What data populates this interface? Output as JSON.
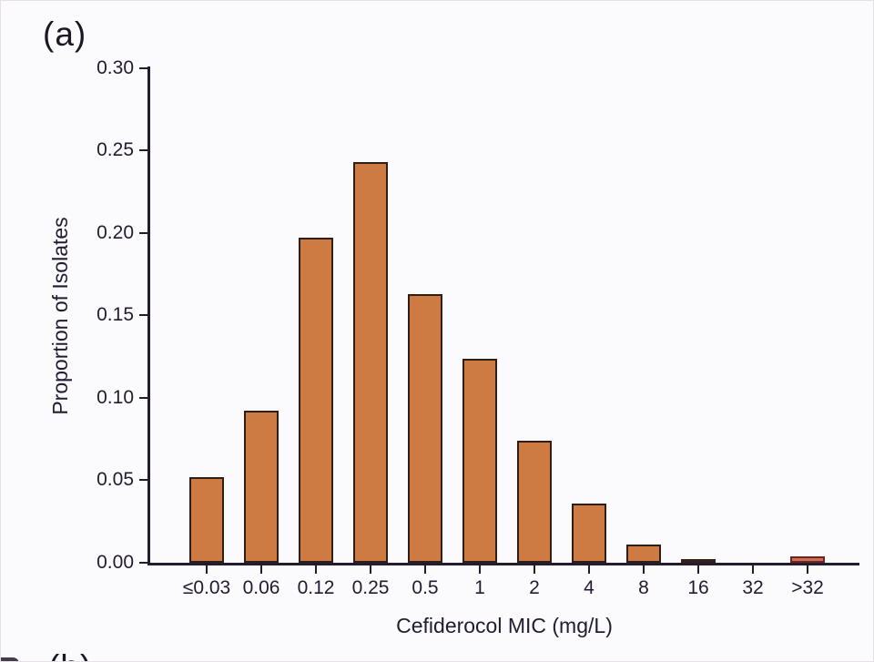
{
  "panel_label_a": "(a)",
  "panel_label_b": "(b)",
  "chart_data": {
    "type": "bar",
    "title": "",
    "xlabel": "Cefiderocol MIC (mg/L)",
    "ylabel": "Proportion of Isolates",
    "categories": [
      "≤0.03",
      "0.06",
      "0.12",
      "0.25",
      "0.5",
      "1",
      "2",
      "4",
      "8",
      "16",
      "32",
      ">32"
    ],
    "values": [
      0.052,
      0.092,
      0.197,
      0.243,
      0.163,
      0.124,
      0.074,
      0.036,
      0.011,
      0.002,
      0,
      0.004
    ],
    "yticks": [
      0.0,
      0.05,
      0.1,
      0.15,
      0.2,
      0.25,
      0.3
    ],
    "ylim": [
      0,
      0.3
    ],
    "grid": false,
    "legend": null,
    "bar_fill": "#cd7b42",
    "bar_border": "#2f1d18",
    "bar_overrides": [
      {
        "index": 9,
        "fill": "#5a3028",
        "border": "#33201b"
      },
      {
        "index": 11,
        "fill": "#cb7155",
        "border": "#6e2420"
      }
    ]
  }
}
